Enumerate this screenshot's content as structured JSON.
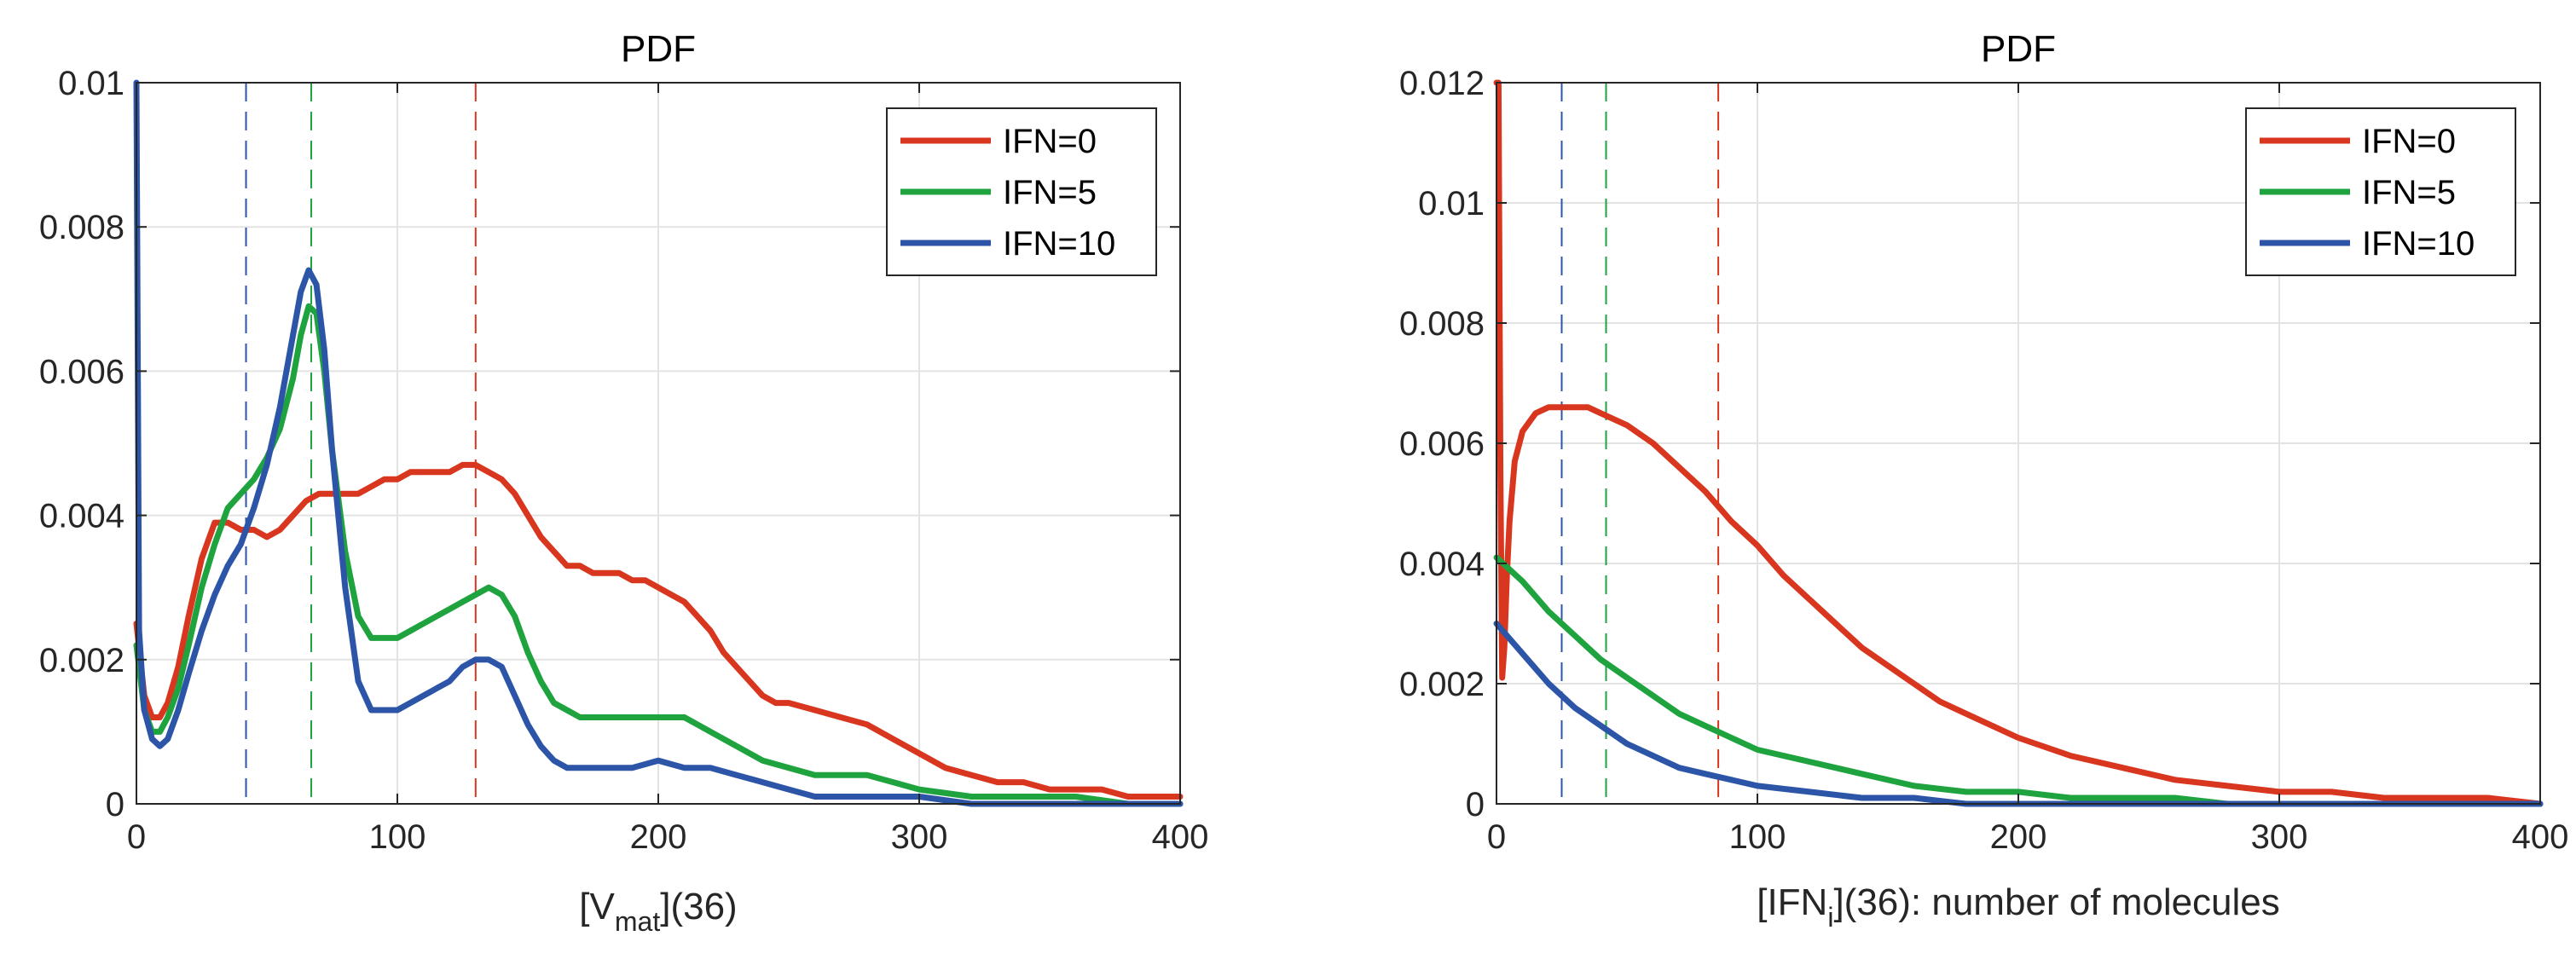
{
  "chart_data": [
    {
      "type": "line",
      "title": "PDF",
      "xlabel_main": "[V",
      "xlabel_sub": "mat",
      "xlabel_suffix": "](36)",
      "xlim": [
        0,
        400
      ],
      "ylim": [
        0,
        0.01
      ],
      "xticks": [
        0,
        100,
        200,
        300,
        400
      ],
      "xtick_labels": [
        "0",
        "100",
        "200",
        "300",
        "400"
      ],
      "yticks": [
        0,
        0.002,
        0.004,
        0.006,
        0.008,
        0.01
      ],
      "ytick_labels": [
        "0",
        "0.002",
        "0.004",
        "0.006",
        "0.008",
        "0.01"
      ],
      "grid": true,
      "legend_position": "top-right",
      "series": [
        {
          "name": "IFN=0",
          "color": "#d9361f",
          "x": [
            0,
            3,
            6,
            9,
            12,
            16,
            20,
            25,
            30,
            35,
            40,
            45,
            50,
            55,
            60,
            65,
            70,
            75,
            80,
            85,
            90,
            95,
            100,
            105,
            110,
            115,
            120,
            125,
            130,
            135,
            140,
            145,
            150,
            155,
            160,
            165,
            170,
            175,
            180,
            185,
            190,
            195,
            200,
            205,
            210,
            215,
            220,
            225,
            230,
            235,
            240,
            245,
            250,
            260,
            270,
            280,
            290,
            300,
            310,
            320,
            330,
            340,
            350,
            360,
            370,
            380,
            390,
            400
          ],
          "values": [
            0.0025,
            0.0015,
            0.0012,
            0.0012,
            0.0014,
            0.0019,
            0.0026,
            0.0034,
            0.0039,
            0.0039,
            0.0038,
            0.0038,
            0.0037,
            0.0038,
            0.004,
            0.0042,
            0.0043,
            0.0043,
            0.0043,
            0.0043,
            0.0044,
            0.0045,
            0.0045,
            0.0046,
            0.0046,
            0.0046,
            0.0046,
            0.0047,
            0.0047,
            0.0046,
            0.0045,
            0.0043,
            0.004,
            0.0037,
            0.0035,
            0.0033,
            0.0033,
            0.0032,
            0.0032,
            0.0032,
            0.0031,
            0.0031,
            0.003,
            0.0029,
            0.0028,
            0.0026,
            0.0024,
            0.0021,
            0.0019,
            0.0017,
            0.0015,
            0.0014,
            0.0014,
            0.0013,
            0.0012,
            0.0011,
            0.0009,
            0.0007,
            0.0005,
            0.0004,
            0.0003,
            0.0003,
            0.0002,
            0.0002,
            0.0002,
            0.0001,
            0.0001,
            0.0001
          ]
        },
        {
          "name": "IFN=5",
          "color": "#1fa33f",
          "x": [
            0,
            3,
            6,
            9,
            12,
            16,
            20,
            25,
            30,
            35,
            40,
            45,
            50,
            55,
            60,
            63,
            66,
            69,
            72,
            75,
            80,
            85,
            90,
            95,
            100,
            105,
            110,
            115,
            120,
            125,
            130,
            135,
            140,
            145,
            150,
            155,
            160,
            165,
            170,
            175,
            180,
            190,
            200,
            205,
            210,
            215,
            220,
            230,
            240,
            250,
            260,
            270,
            280,
            290,
            300,
            320,
            340,
            360,
            380,
            400
          ],
          "values": [
            0.0022,
            0.0013,
            0.001,
            0.001,
            0.0012,
            0.0016,
            0.0022,
            0.003,
            0.0036,
            0.0041,
            0.0043,
            0.0045,
            0.0048,
            0.0052,
            0.0059,
            0.0065,
            0.0069,
            0.0068,
            0.006,
            0.0049,
            0.0035,
            0.0026,
            0.0023,
            0.0023,
            0.0023,
            0.0024,
            0.0025,
            0.0026,
            0.0027,
            0.0028,
            0.0029,
            0.003,
            0.0029,
            0.0026,
            0.0021,
            0.0017,
            0.0014,
            0.0013,
            0.0012,
            0.0012,
            0.0012,
            0.0012,
            0.0012,
            0.0012,
            0.0012,
            0.0011,
            0.001,
            0.0008,
            0.0006,
            0.0005,
            0.0004,
            0.0004,
            0.0004,
            0.0003,
            0.0002,
            0.0001,
            0.0001,
            0.0001,
            0.0,
            0.0
          ]
        },
        {
          "name": "IFN=10",
          "color": "#2c55a8",
          "x": [
            0,
            1,
            3,
            6,
            9,
            12,
            16,
            20,
            25,
            30,
            35,
            40,
            45,
            50,
            55,
            60,
            63,
            66,
            69,
            72,
            75,
            80,
            85,
            90,
            95,
            100,
            105,
            110,
            115,
            120,
            125,
            130,
            135,
            140,
            145,
            150,
            155,
            160,
            165,
            170,
            175,
            180,
            190,
            200,
            210,
            220,
            230,
            240,
            250,
            260,
            270,
            280,
            290,
            300,
            320,
            340,
            360,
            380,
            400
          ],
          "values": [
            0.01,
            0.0024,
            0.0013,
            0.0009,
            0.0008,
            0.0009,
            0.0013,
            0.0018,
            0.0024,
            0.0029,
            0.0033,
            0.0036,
            0.0041,
            0.0047,
            0.0055,
            0.0065,
            0.0071,
            0.0074,
            0.0072,
            0.0063,
            0.0049,
            0.003,
            0.0017,
            0.0013,
            0.0013,
            0.0013,
            0.0014,
            0.0015,
            0.0016,
            0.0017,
            0.0019,
            0.002,
            0.002,
            0.0019,
            0.0015,
            0.0011,
            0.0008,
            0.0006,
            0.0005,
            0.0005,
            0.0005,
            0.0005,
            0.0005,
            0.0006,
            0.0005,
            0.0005,
            0.0004,
            0.0003,
            0.0002,
            0.0001,
            0.0001,
            0.0001,
            0.0001,
            0.0001,
            0.0,
            0.0,
            0.0,
            0.0,
            0.0
          ]
        }
      ],
      "vlines": [
        {
          "x": 42,
          "color": "#2c55a8"
        },
        {
          "x": 67,
          "color": "#1fa33f"
        },
        {
          "x": 130,
          "color": "#d9361f"
        }
      ]
    },
    {
      "type": "line",
      "title": "PDF",
      "xlabel_main": "[IFN",
      "xlabel_sub": "i",
      "xlabel_suffix": "](36): number of molecules",
      "xlim": [
        0,
        400
      ],
      "ylim": [
        0,
        0.012
      ],
      "xticks": [
        0,
        100,
        200,
        300,
        400
      ],
      "xtick_labels": [
        "0",
        "100",
        "200",
        "300",
        "400"
      ],
      "yticks": [
        0,
        0.002,
        0.004,
        0.006,
        0.008,
        0.01,
        0.012
      ],
      "ytick_labels": [
        "0",
        "0.002",
        "0.004",
        "0.006",
        "0.008",
        "0.01",
        "0.012"
      ],
      "grid": true,
      "legend_position": "top-right",
      "series": [
        {
          "name": "IFN=0",
          "color": "#d9361f",
          "x": [
            0,
            0.8,
            1.5,
            2.2,
            3,
            4,
            5,
            7,
            10,
            15,
            20,
            25,
            30,
            35,
            40,
            45,
            50,
            60,
            70,
            80,
            90,
            100,
            110,
            120,
            130,
            140,
            150,
            160,
            170,
            180,
            190,
            200,
            220,
            240,
            260,
            280,
            300,
            320,
            340,
            360,
            380,
            400
          ],
          "values": [
            0.012,
            0.012,
            0.0055,
            0.0021,
            0.0026,
            0.0038,
            0.0047,
            0.0057,
            0.0062,
            0.0065,
            0.0066,
            0.0066,
            0.0066,
            0.0066,
            0.0065,
            0.0064,
            0.0063,
            0.006,
            0.0056,
            0.0052,
            0.0047,
            0.0043,
            0.0038,
            0.0034,
            0.003,
            0.0026,
            0.0023,
            0.002,
            0.0017,
            0.0015,
            0.0013,
            0.0011,
            0.0008,
            0.0006,
            0.0004,
            0.0003,
            0.0002,
            0.0002,
            0.0001,
            0.0001,
            0.0001,
            0.0
          ]
        },
        {
          "name": "IFN=5",
          "color": "#1fa33f",
          "x": [
            0,
            10,
            20,
            30,
            40,
            50,
            60,
            70,
            80,
            90,
            100,
            120,
            140,
            160,
            180,
            200,
            220,
            240,
            260,
            280,
            300,
            320,
            340,
            360,
            380,
            400
          ],
          "values": [
            0.0041,
            0.0037,
            0.0032,
            0.0028,
            0.0024,
            0.0021,
            0.0018,
            0.0015,
            0.0013,
            0.0011,
            0.0009,
            0.0007,
            0.0005,
            0.0003,
            0.0002,
            0.0002,
            0.0001,
            0.0001,
            0.0001,
            0.0,
            0.0,
            0.0,
            0.0,
            0.0,
            0.0,
            0.0
          ]
        },
        {
          "name": "IFN=10",
          "color": "#2c55a8",
          "x": [
            0,
            10,
            20,
            30,
            40,
            50,
            60,
            70,
            80,
            90,
            100,
            120,
            140,
            160,
            180,
            200,
            220,
            240,
            260,
            280,
            300,
            320,
            340,
            360,
            380,
            400
          ],
          "values": [
            0.003,
            0.0025,
            0.002,
            0.0016,
            0.0013,
            0.001,
            0.0008,
            0.0006,
            0.0005,
            0.0004,
            0.0003,
            0.0002,
            0.0001,
            0.0001,
            0.0,
            0.0,
            0.0,
            0.0,
            0.0,
            0.0,
            0.0,
            0.0,
            0.0,
            0.0,
            0.0,
            0.0
          ]
        }
      ],
      "vlines": [
        {
          "x": 25,
          "color": "#2c55a8"
        },
        {
          "x": 42,
          "color": "#1fa33f"
        },
        {
          "x": 85,
          "color": "#d9361f"
        }
      ]
    }
  ]
}
